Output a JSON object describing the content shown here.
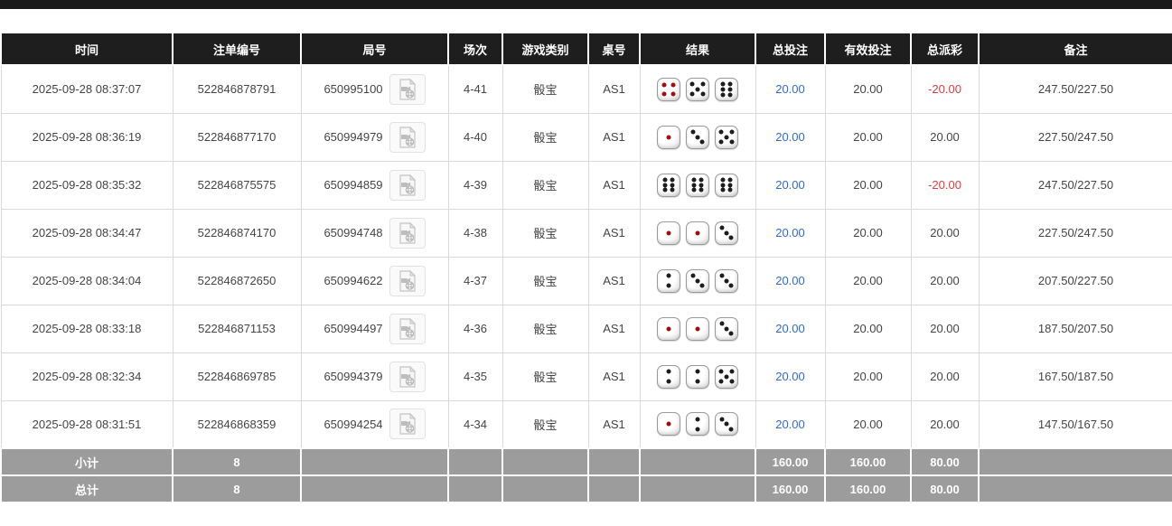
{
  "page": {
    "top_bar_color": "#191919"
  },
  "table": {
    "colors": {
      "header_bg": "#1e1e1e",
      "footer_bg": "#9c9c9c",
      "total_bet_link": "#2f6bce",
      "payout_negative": "#e23b3b"
    },
    "dice_red_values": [
      1,
      4
    ],
    "headers": [
      {
        "key": "time",
        "label": "时间"
      },
      {
        "key": "bet_id",
        "label": "注单编号"
      },
      {
        "key": "round_id",
        "label": "局号"
      },
      {
        "key": "session",
        "label": "场次"
      },
      {
        "key": "game_type",
        "label": "游戏类别"
      },
      {
        "key": "table_id",
        "label": "桌号"
      },
      {
        "key": "result",
        "label": "结果"
      },
      {
        "key": "total_bet",
        "label": "总投注"
      },
      {
        "key": "valid_bet",
        "label": "有效投注"
      },
      {
        "key": "payout",
        "label": "总派彩"
      },
      {
        "key": "remark",
        "label": "备注"
      }
    ],
    "video_icon": "video-file-icon",
    "rows": [
      {
        "time": "2025-09-28 08:37:07",
        "bet_id": "522846878791",
        "round_id": "650995100",
        "session": "4-41",
        "game_type": "骰宝",
        "table_id": "AS1",
        "dice": [
          4,
          5,
          6
        ],
        "total_bet": "20.00",
        "valid_bet": "20.00",
        "payout": "-20.00",
        "remark": "247.50/227.50"
      },
      {
        "time": "2025-09-28 08:36:19",
        "bet_id": "522846877170",
        "round_id": "650994979",
        "session": "4-40",
        "game_type": "骰宝",
        "table_id": "AS1",
        "dice": [
          1,
          3,
          5
        ],
        "total_bet": "20.00",
        "valid_bet": "20.00",
        "payout": "20.00",
        "remark": "227.50/247.50"
      },
      {
        "time": "2025-09-28 08:35:32",
        "bet_id": "522846875575",
        "round_id": "650994859",
        "session": "4-39",
        "game_type": "骰宝",
        "table_id": "AS1",
        "dice": [
          6,
          6,
          6
        ],
        "total_bet": "20.00",
        "valid_bet": "20.00",
        "payout": "-20.00",
        "remark": "247.50/227.50"
      },
      {
        "time": "2025-09-28 08:34:47",
        "bet_id": "522846874170",
        "round_id": "650994748",
        "session": "4-38",
        "game_type": "骰宝",
        "table_id": "AS1",
        "dice": [
          1,
          1,
          3
        ],
        "total_bet": "20.00",
        "valid_bet": "20.00",
        "payout": "20.00",
        "remark": "227.50/247.50"
      },
      {
        "time": "2025-09-28 08:34:04",
        "bet_id": "522846872650",
        "round_id": "650994622",
        "session": "4-37",
        "game_type": "骰宝",
        "table_id": "AS1",
        "dice": [
          2,
          3,
          3
        ],
        "total_bet": "20.00",
        "valid_bet": "20.00",
        "payout": "20.00",
        "remark": "207.50/227.50"
      },
      {
        "time": "2025-09-28 08:33:18",
        "bet_id": "522846871153",
        "round_id": "650994497",
        "session": "4-36",
        "game_type": "骰宝",
        "table_id": "AS1",
        "dice": [
          1,
          1,
          3
        ],
        "total_bet": "20.00",
        "valid_bet": "20.00",
        "payout": "20.00",
        "remark": "187.50/207.50"
      },
      {
        "time": "2025-09-28 08:32:34",
        "bet_id": "522846869785",
        "round_id": "650994379",
        "session": "4-35",
        "game_type": "骰宝",
        "table_id": "AS1",
        "dice": [
          2,
          2,
          5
        ],
        "total_bet": "20.00",
        "valid_bet": "20.00",
        "payout": "20.00",
        "remark": "167.50/187.50"
      },
      {
        "time": "2025-09-28 08:31:51",
        "bet_id": "522846868359",
        "round_id": "650994254",
        "session": "4-34",
        "game_type": "骰宝",
        "table_id": "AS1",
        "dice": [
          1,
          2,
          3
        ],
        "total_bet": "20.00",
        "valid_bet": "20.00",
        "payout": "20.00",
        "remark": "147.50/167.50"
      }
    ],
    "footer": [
      {
        "label": "小计",
        "count": "8",
        "total_bet": "160.00",
        "valid_bet": "160.00",
        "payout": "80.00"
      },
      {
        "label": "总计",
        "count": "8",
        "total_bet": "160.00",
        "valid_bet": "160.00",
        "payout": "80.00"
      }
    ]
  }
}
